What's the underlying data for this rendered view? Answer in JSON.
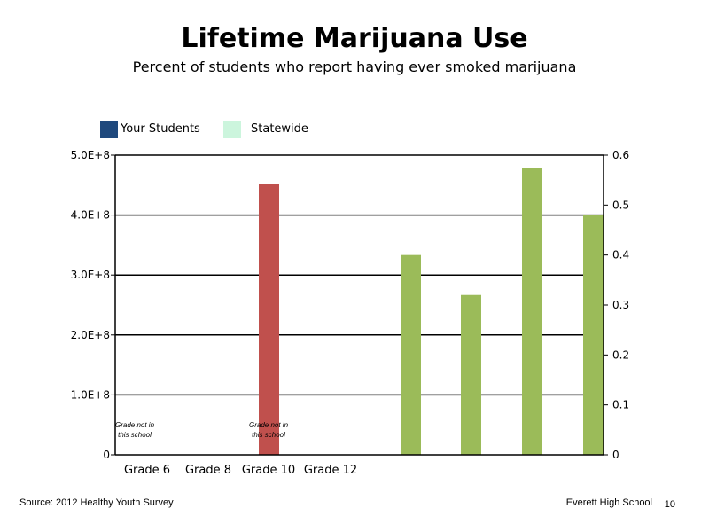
{
  "title": "Lifetime Marijuana Use",
  "subtitle": "Percent of students who report having ever smoked marijuana",
  "legend": [
    {
      "label": "Your Students",
      "color": "#1f497d"
    },
    {
      "label": "Statewide",
      "color": "#ccf5dd"
    }
  ],
  "footer": {
    "source": "Source: 2012 Healthy Youth Survey",
    "school": "Everett High School",
    "page": "10"
  },
  "chart_data": {
    "type": "bar",
    "categories": [
      "Grade 6",
      "Grade 8",
      "Grade 10",
      "Grade 12"
    ],
    "left_axis": {
      "ylim": [
        0,
        500000000
      ],
      "ticks": [
        "0",
        "1.0E+8",
        "2.0E+8",
        "3.0E+8",
        "4.0E+8",
        "5.0E+8"
      ]
    },
    "right_axis": {
      "ylim": [
        0,
        0.6
      ],
      "ticks": [
        "0",
        "0.1",
        "0.2",
        "0.3",
        "0.4",
        "0.5",
        "0.6"
      ]
    },
    "grid": true,
    "red_bar": {
      "category": "Grade 10",
      "value": 452000000,
      "axis": "left",
      "color": "#c0504d"
    },
    "green_bars": {
      "axis": "right",
      "color": "#9bbb59",
      "values": [
        0.4,
        0.32,
        0.575,
        0.48
      ]
    },
    "annotations": [
      {
        "category": "Grade 6",
        "line1": "Grade not in",
        "line2": "this school"
      },
      {
        "category": "Grade 10",
        "line1": "Grade not in",
        "line2": "this school"
      }
    ]
  }
}
